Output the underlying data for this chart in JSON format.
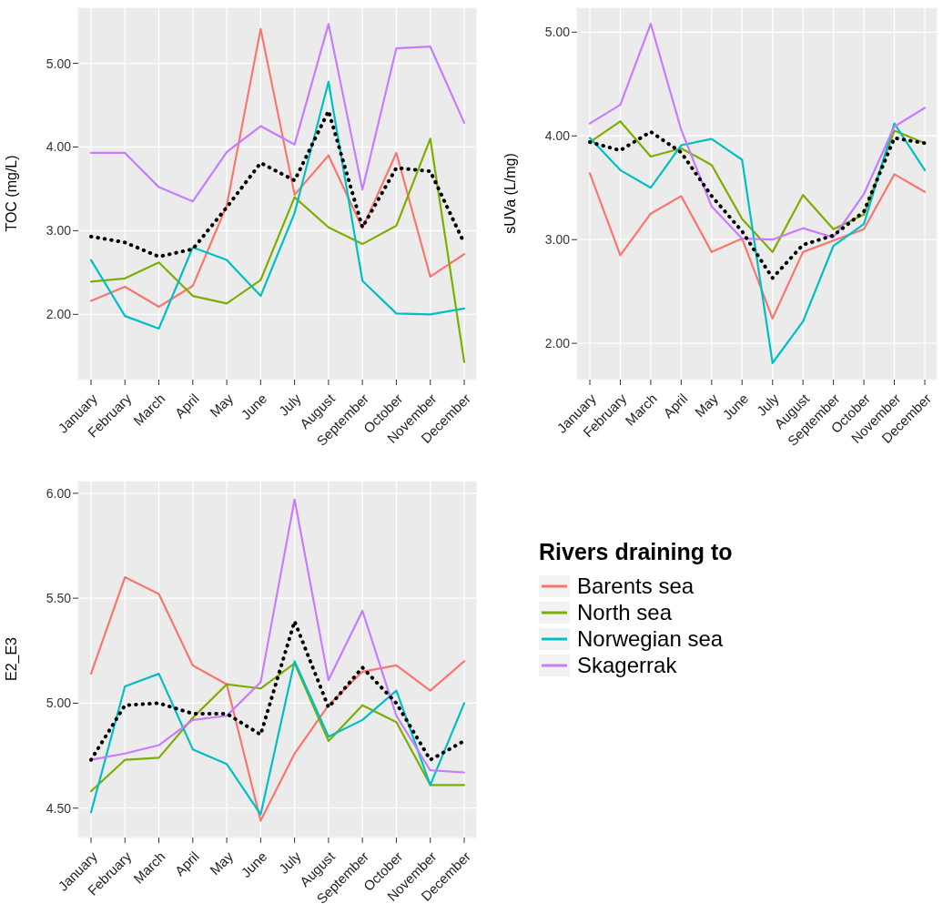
{
  "chart_data": [
    {
      "type": "line",
      "ylabel": "TOC (mg/L)",
      "categories": [
        "January",
        "February",
        "March",
        "April",
        "May",
        "June",
        "July",
        "August",
        "September",
        "October",
        "November",
        "December"
      ],
      "ylim": [
        1.22,
        5.67
      ],
      "yticks": [
        {
          "value": 2,
          "label": "2.00"
        },
        {
          "value": 3,
          "label": "3.00"
        },
        {
          "value": 4,
          "label": "4.00"
        },
        {
          "value": 5,
          "label": "5.00"
        }
      ],
      "grid": true,
      "legend": false,
      "line_style": "solid",
      "series": [
        {
          "color": "#f8766d",
          "values": [
            2.16,
            2.33,
            2.09,
            2.34,
            3.3,
            5.41,
            3.43,
            3.9,
            3.03,
            3.93,
            2.45,
            2.72
          ]
        },
        {
          "color": "#7cae00",
          "values": [
            2.39,
            2.43,
            2.62,
            2.22,
            2.13,
            2.41,
            3.4,
            3.04,
            2.84,
            3.06,
            4.1,
            1.43
          ]
        },
        {
          "color": "#00bfc4",
          "values": [
            2.65,
            1.98,
            1.83,
            2.8,
            2.65,
            2.22,
            3.21,
            4.78,
            2.4,
            2.01,
            2.0,
            2.07
          ]
        },
        {
          "color": "#c77cff",
          "values": [
            3.93,
            3.93,
            3.52,
            3.35,
            3.94,
            4.25,
            4.03,
            5.47,
            3.49,
            5.18,
            5.2,
            4.29
          ]
        },
        {
          "color": "#000000",
          "line_style": "dotted",
          "values": [
            2.93,
            2.86,
            2.69,
            2.78,
            3.28,
            3.81,
            3.6,
            4.43,
            3.04,
            3.75,
            3.71,
            2.85
          ]
        }
      ]
    },
    {
      "type": "line",
      "ylabel": "sUVa (L/mg)",
      "categories": [
        "January",
        "February",
        "March",
        "April",
        "May",
        "June",
        "July",
        "August",
        "September",
        "October",
        "November",
        "December"
      ],
      "ylim": [
        1.65,
        5.24
      ],
      "yticks": [
        {
          "value": 2,
          "label": "2.00"
        },
        {
          "value": 3,
          "label": "3.00"
        },
        {
          "value": 4,
          "label": "4.00"
        },
        {
          "value": 5,
          "label": "5.00"
        }
      ],
      "grid": true,
      "legend": false,
      "line_style": "solid",
      "series": [
        {
          "color": "#f8766d",
          "values": [
            3.64,
            2.85,
            3.25,
            3.42,
            2.88,
            3.01,
            2.24,
            2.88,
            2.99,
            3.1,
            3.63,
            3.46
          ]
        },
        {
          "color": "#7cae00",
          "values": [
            3.94,
            4.14,
            3.8,
            3.88,
            3.72,
            3.2,
            2.88,
            3.43,
            3.1,
            3.24,
            4.05,
            3.93
          ]
        },
        {
          "color": "#00bfc4",
          "values": [
            3.98,
            3.67,
            3.5,
            3.91,
            3.97,
            3.77,
            1.81,
            2.21,
            2.94,
            3.15,
            4.12,
            3.67
          ]
        },
        {
          "color": "#c77cff",
          "values": [
            4.12,
            4.3,
            5.08,
            4.06,
            3.32,
            3.01,
            3.0,
            3.11,
            3.02,
            3.44,
            4.09,
            4.27
          ]
        },
        {
          "color": "#000000",
          "line_style": "dotted",
          "values": [
            3.94,
            3.86,
            4.04,
            3.84,
            3.42,
            3.08,
            2.63,
            2.95,
            3.04,
            3.27,
            3.98,
            3.93
          ]
        }
      ]
    },
    {
      "type": "line",
      "ylabel": "E2_E3",
      "legend_title": "Rivers draining to",
      "categories": [
        "January",
        "February",
        "March",
        "April",
        "May",
        "June",
        "July",
        "August",
        "September",
        "October",
        "November",
        "December"
      ],
      "ylim": [
        4.36,
        6.06
      ],
      "yticks": [
        {
          "value": 4.5,
          "label": "4.50"
        },
        {
          "value": 5,
          "label": "5.00"
        },
        {
          "value": 5.5,
          "label": "5.50"
        },
        {
          "value": 6,
          "label": "6.00"
        }
      ],
      "grid": true,
      "legend": "right",
      "line_style": "solid",
      "series": [
        {
          "name": "Barents sea",
          "color": "#f8766d",
          "values": [
            5.14,
            5.6,
            5.52,
            5.18,
            5.09,
            4.44,
            4.76,
            4.99,
            5.15,
            5.18,
            5.06,
            5.2
          ]
        },
        {
          "name": "North sea",
          "color": "#7cae00",
          "values": [
            4.58,
            4.73,
            4.74,
            4.93,
            5.09,
            5.07,
            5.19,
            4.82,
            4.99,
            4.91,
            4.61,
            4.61
          ]
        },
        {
          "name": "Norwegian sea",
          "color": "#00bfc4",
          "values": [
            4.48,
            5.08,
            5.14,
            4.78,
            4.71,
            4.47,
            5.2,
            4.84,
            4.92,
            5.06,
            4.61,
            5.0
          ]
        },
        {
          "name": "Skagerrak",
          "color": "#c77cff",
          "values": [
            4.73,
            4.76,
            4.8,
            4.92,
            4.94,
            5.1,
            5.97,
            5.11,
            5.44,
            4.94,
            4.68,
            4.67
          ]
        },
        {
          "color": "#000000",
          "line_style": "dotted",
          "values": [
            4.73,
            4.99,
            5.0,
            4.95,
            4.95,
            4.85,
            5.39,
            4.98,
            5.17,
            5.0,
            4.73,
            4.82
          ]
        }
      ]
    }
  ]
}
